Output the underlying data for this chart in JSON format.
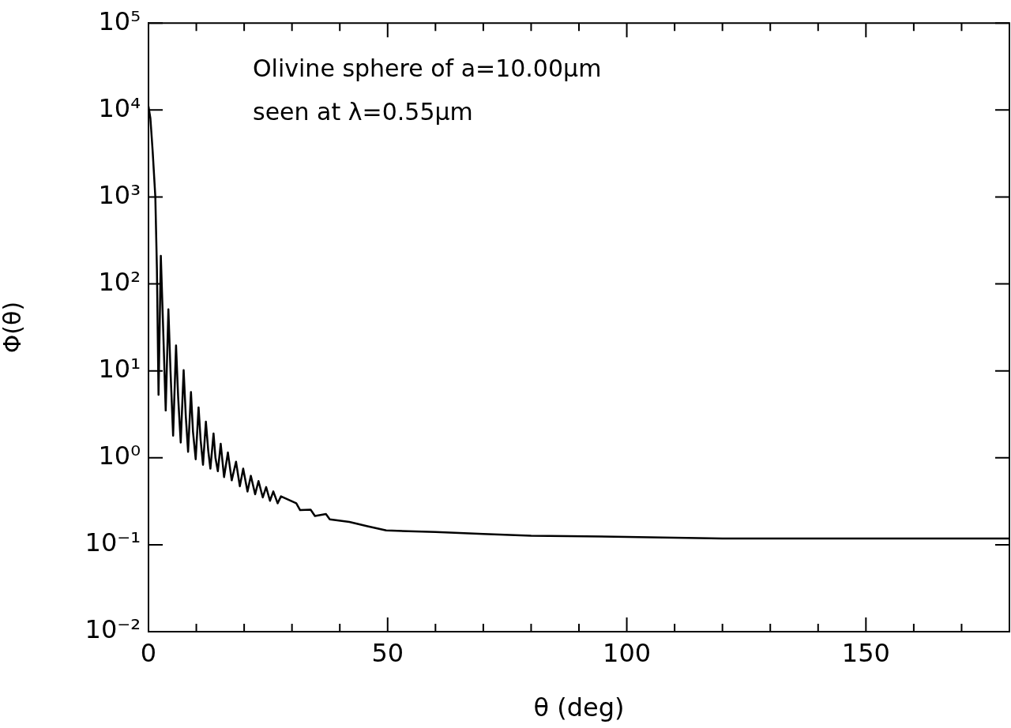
{
  "chart_data": {
    "type": "line",
    "xlabel": "θ (deg)",
    "ylabel": "Φ(θ)",
    "annotations": [
      "Olivine sphere of a=10.00μm",
      "seen at λ=0.55μm"
    ],
    "log": "y",
    "grid": false,
    "legend": false,
    "marker": "none",
    "line_style": "solid",
    "xlim": [
      0,
      180
    ],
    "ylim": [
      0.01,
      100000
    ],
    "xticks": [
      0,
      {
        "value": 10,
        "label": null
      },
      {
        "value": 20,
        "label": null
      },
      {
        "value": 30,
        "label": null
      },
      {
        "value": 40,
        "label": null
      },
      50,
      {
        "value": 60,
        "label": null
      },
      {
        "value": 70,
        "label": null
      },
      {
        "value": 80,
        "label": null
      },
      {
        "value": 90,
        "label": null
      },
      100,
      {
        "value": 110,
        "label": null
      },
      {
        "value": 120,
        "label": null
      },
      {
        "value": 130,
        "label": null
      },
      {
        "value": 140,
        "label": null
      },
      150,
      {
        "value": 160,
        "label": null
      },
      {
        "value": 170,
        "label": null
      },
      {
        "value": 180,
        "label": null
      }
    ],
    "yticks": [
      {
        "value": 0.01,
        "label": "10⁻²"
      },
      {
        "value": 0.1,
        "label": "10⁻¹"
      },
      {
        "value": 1,
        "label": "10⁰"
      },
      {
        "value": 10,
        "label": "10¹"
      },
      {
        "value": 100,
        "label": "10²"
      },
      {
        "value": 1000,
        "label": "10³"
      },
      {
        "value": 10000,
        "label": "10⁴"
      },
      {
        "value": 100000,
        "label": "10⁵"
      }
    ],
    "series": [
      {
        "color": "#000000",
        "x": [
          0,
          0.4,
          0.88,
          1.43,
          1.76,
          2.1,
          2.58,
          3.0,
          3.6,
          4.16,
          4.6,
          5.15,
          5.76,
          6.2,
          6.74,
          7.35,
          7.8,
          8.28,
          8.88,
          9.3,
          9.87,
          10.47,
          10.9,
          11.4,
          12.0,
          12.5,
          12.94,
          13.6,
          14.0,
          14.5,
          15.1,
          15.8,
          16.6,
          17.4,
          18.3,
          19.1,
          19.8,
          20.7,
          21.4,
          22.3,
          23.0,
          23.9,
          24.6,
          25.4,
          26.1,
          27.0,
          27.7,
          30.9,
          31.7,
          33.9,
          34.8,
          37.1,
          37.9,
          42,
          45.8,
          49.7,
          60,
          70,
          80,
          100,
          120,
          150,
          180
        ],
        "values": [
          11000,
          8000,
          3300,
          1000,
          150,
          5.3,
          210,
          40,
          3.5,
          51,
          10,
          1.8,
          19.6,
          5,
          1.5,
          10.2,
          3,
          1.17,
          5.7,
          2,
          0.96,
          3.8,
          1.6,
          0.83,
          2.6,
          1.2,
          0.75,
          1.9,
          1.0,
          0.7,
          1.45,
          0.6,
          1.15,
          0.55,
          0.9,
          0.47,
          0.75,
          0.41,
          0.62,
          0.38,
          0.54,
          0.35,
          0.46,
          0.32,
          0.41,
          0.3,
          0.36,
          0.3,
          0.25,
          0.253,
          0.214,
          0.225,
          0.196,
          0.183,
          0.163,
          0.146,
          0.14,
          0.133,
          0.127,
          0.123,
          0.118,
          0.118,
          0.118
        ]
      }
    ]
  }
}
